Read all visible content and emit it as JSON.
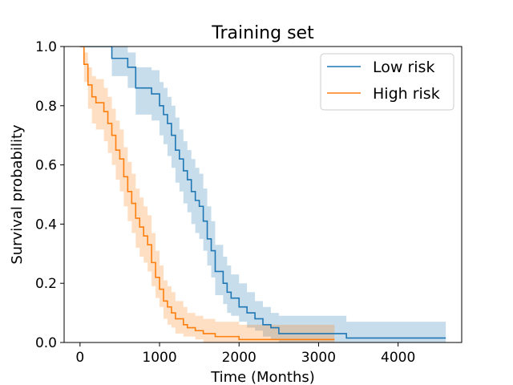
{
  "chart_data": {
    "type": "line",
    "title": "Training set",
    "xlabel": "Time (Months)",
    "ylabel": "Survival probability",
    "xlim": [
      -200,
      4800
    ],
    "ylim": [
      0,
      1
    ],
    "xticks": [
      0,
      1000,
      2000,
      3000,
      4000
    ],
    "xtick_labels": [
      "0",
      "1000",
      "2000",
      "3000",
      "4000"
    ],
    "yticks": [
      0,
      0.2,
      0.4,
      0.6,
      0.8,
      1.0
    ],
    "ytick_labels": [
      "0.0",
      "0.2",
      "0.4",
      "0.6",
      "0.8",
      "1.0"
    ],
    "grid": false,
    "legend_position": "top-right",
    "series": [
      {
        "name": "Low risk",
        "color": "#1f77b4",
        "band_color": "#1f77b4",
        "x": [
          0,
          350,
          400,
          600,
          700,
          900,
          1000,
          1050,
          1100,
          1150,
          1200,
          1250,
          1300,
          1350,
          1400,
          1450,
          1500,
          1550,
          1600,
          1650,
          1700,
          1800,
          1850,
          1900,
          2000,
          2100,
          2200,
          2300,
          2400,
          2500,
          2700,
          3350,
          4600
        ],
        "y": [
          1.0,
          1.0,
          0.96,
          0.93,
          0.86,
          0.84,
          0.8,
          0.77,
          0.74,
          0.7,
          0.65,
          0.62,
          0.58,
          0.55,
          0.51,
          0.48,
          0.46,
          0.41,
          0.35,
          0.31,
          0.24,
          0.2,
          0.17,
          0.15,
          0.12,
          0.1,
          0.08,
          0.06,
          0.05,
          0.03,
          0.03,
          0.015,
          0.015
        ],
        "lower": [
          1.0,
          1.0,
          0.9,
          0.86,
          0.77,
          0.75,
          0.7,
          0.67,
          0.63,
          0.59,
          0.54,
          0.51,
          0.47,
          0.44,
          0.4,
          0.37,
          0.35,
          0.31,
          0.26,
          0.22,
          0.16,
          0.13,
          0.1,
          0.09,
          0.07,
          0.05,
          0.04,
          0.02,
          0.01,
          0.0,
          0.0,
          0.0,
          0.0
        ],
        "upper": [
          1.0,
          1.0,
          1.0,
          0.98,
          0.93,
          0.92,
          0.88,
          0.86,
          0.83,
          0.8,
          0.76,
          0.72,
          0.68,
          0.65,
          0.62,
          0.59,
          0.57,
          0.52,
          0.46,
          0.41,
          0.33,
          0.29,
          0.26,
          0.23,
          0.2,
          0.17,
          0.14,
          0.12,
          0.1,
          0.09,
          0.09,
          0.07,
          0.07
        ]
      },
      {
        "name": "High risk",
        "color": "#ff7f0e",
        "band_color": "#ff7f0e",
        "x": [
          0,
          50,
          100,
          150,
          200,
          300,
          350,
          400,
          450,
          500,
          550,
          600,
          650,
          700,
          750,
          800,
          850,
          900,
          950,
          1000,
          1050,
          1100,
          1150,
          1200,
          1300,
          1350,
          1450,
          1550,
          1700,
          2000,
          2500,
          3200
        ],
        "y": [
          1.0,
          0.94,
          0.87,
          0.83,
          0.81,
          0.78,
          0.74,
          0.7,
          0.65,
          0.62,
          0.56,
          0.51,
          0.47,
          0.42,
          0.39,
          0.36,
          0.33,
          0.27,
          0.22,
          0.18,
          0.14,
          0.12,
          0.1,
          0.08,
          0.06,
          0.05,
          0.04,
          0.03,
          0.02,
          0.01,
          0.01,
          0.01
        ],
        "lower": [
          1.0,
          0.88,
          0.79,
          0.74,
          0.72,
          0.68,
          0.64,
          0.6,
          0.55,
          0.51,
          0.46,
          0.41,
          0.37,
          0.32,
          0.29,
          0.27,
          0.24,
          0.19,
          0.15,
          0.12,
          0.08,
          0.06,
          0.05,
          0.03,
          0.02,
          0.02,
          0.01,
          0.0,
          0.0,
          0.0,
          0.0,
          0.0
        ],
        "upper": [
          1.0,
          0.98,
          0.93,
          0.9,
          0.89,
          0.86,
          0.83,
          0.79,
          0.75,
          0.72,
          0.66,
          0.61,
          0.57,
          0.52,
          0.49,
          0.46,
          0.43,
          0.37,
          0.31,
          0.26,
          0.21,
          0.19,
          0.17,
          0.14,
          0.12,
          0.1,
          0.09,
          0.08,
          0.07,
          0.06,
          0.06,
          0.06
        ]
      }
    ]
  }
}
